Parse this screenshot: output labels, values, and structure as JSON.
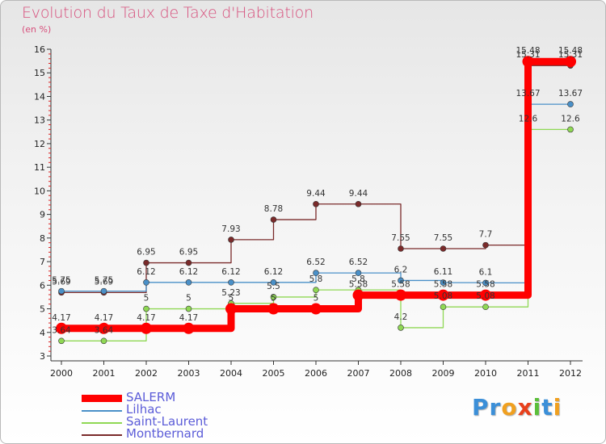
{
  "title": "Evolution du Taux de Taxe d'Habitation",
  "subtitle": "(en %)",
  "logo": {
    "text": "Proxiti",
    "letters": [
      "P",
      "r",
      "o",
      "x",
      "i",
      "t",
      "i"
    ],
    "colors": [
      "#3b8fd8",
      "#3b8fd8",
      "#f0a020",
      "#e8401c",
      "#5bbf3a",
      "#3b8fd8",
      "#f0a020"
    ]
  },
  "chart_data": {
    "type": "line",
    "x": [
      "2000",
      "2001",
      "2002",
      "2003",
      "2004",
      "2005",
      "2006",
      "2007",
      "2008",
      "2009",
      "2010",
      "2011",
      "2012"
    ],
    "ylim": [
      3,
      16
    ],
    "yticks": [
      "3",
      "4",
      "5",
      "6",
      "7",
      "8",
      "9",
      "10",
      "11",
      "12",
      "13",
      "14",
      "15",
      "16"
    ],
    "grid": false,
    "legend_position": "bottom-left",
    "series": [
      {
        "name": "SALERM",
        "color": "#ff0000",
        "values": [
          4.17,
          4.17,
          4.17,
          4.17,
          5,
          5,
          5,
          5.58,
          5.58,
          5.58,
          5.58,
          15.48,
          15.48
        ],
        "labels": [
          "4.17",
          "4.17",
          "4.17",
          "4.17",
          "5",
          "5",
          "5",
          "5.58",
          "5.58",
          "5.58",
          "5.58",
          "15.48",
          "15.48"
        ]
      },
      {
        "name": "Lilhac",
        "color": "#4a90c8",
        "values": [
          5.75,
          5.75,
          6.12,
          6.12,
          6.12,
          6.12,
          6.52,
          6.52,
          6.2,
          6.11,
          6.1,
          13.67,
          13.67
        ],
        "labels": [
          "5.75",
          "5.75",
          "6.12",
          "6.12",
          "6.12",
          "6.12",
          "6.52",
          "6.52",
          "6.2",
          "6.11",
          "6.1",
          "13.67",
          "13.67"
        ]
      },
      {
        "name": "Saint-Laurent",
        "color": "#8fd854",
        "values": [
          3.64,
          3.64,
          5,
          5,
          5.23,
          5.5,
          5.8,
          5.8,
          4.2,
          5.08,
          5.08,
          12.6,
          12.6
        ],
        "labels": [
          "3.64",
          "3.64",
          "5",
          "5",
          "5.23",
          "5.5",
          "5.8",
          "5.8",
          "4.2",
          "5.08",
          "5.08",
          "12.6",
          "12.6"
        ]
      },
      {
        "name": "Montbernard",
        "color": "#7a2a2a",
        "values": [
          5.69,
          5.69,
          6.95,
          6.95,
          7.93,
          8.78,
          9.44,
          9.44,
          7.55,
          7.55,
          7.7,
          15.31,
          15.31
        ],
        "labels": [
          "5.69",
          "5.69",
          "6.95",
          "6.95",
          "7.93",
          "8.78",
          "9.44",
          "9.44",
          "7.55",
          "7.55",
          "7.7",
          "15.31",
          "15.31"
        ]
      }
    ]
  }
}
